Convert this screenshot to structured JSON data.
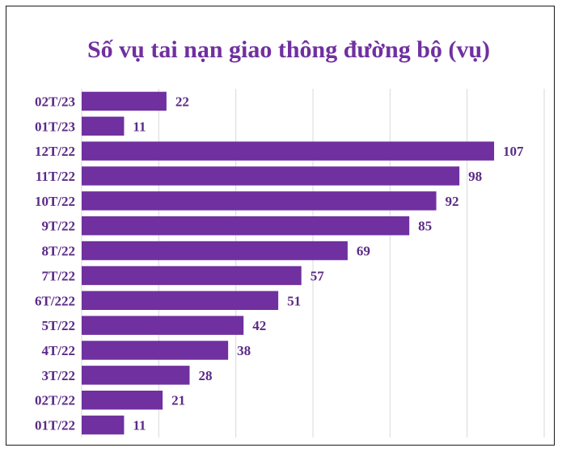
{
  "chart_data": {
    "type": "bar",
    "orientation": "horizontal",
    "title": "Số vụ tai nạn giao thông đường bộ (vụ)",
    "categories": [
      "02T/23",
      "01T/23",
      "12T/22",
      "11T/22",
      "10T/22",
      "9T/22",
      "8T/22",
      "7T/22",
      "6T/222",
      "5T/22",
      "4T/22",
      "3T/22",
      "02T/22",
      "01T/22"
    ],
    "values": [
      22,
      11,
      107,
      98,
      92,
      85,
      69,
      57,
      51,
      42,
      38,
      28,
      21,
      11
    ],
    "xlim": [
      0,
      120
    ],
    "grid": true,
    "colors": {
      "bar": "#7030a0",
      "title": "#7030a0",
      "label": "#5b2a86",
      "grid": "#d9d9d9",
      "frame": "#1a1a1a"
    }
  }
}
